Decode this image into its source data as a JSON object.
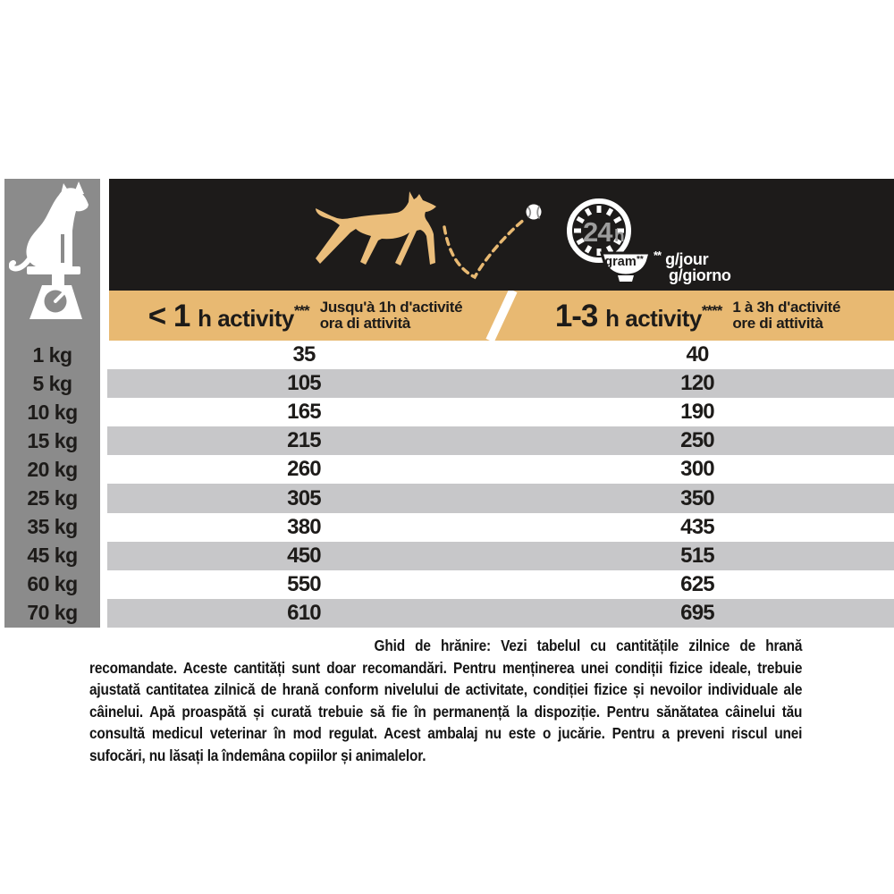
{
  "colors": {
    "band_black": "#1d1b1a",
    "gold": "#e8b972",
    "dog_gold": "#ebbe7b",
    "sidebar_gray": "#8b8b8b",
    "row_gray": "#c7c7c9",
    "clock_text_gray": "#9d9d9d",
    "text_black": "#1d1b19"
  },
  "icons": {
    "left_panel": "dog-on-scale-icon",
    "band": [
      "running-dog-icon",
      "ball-bounce-trajectory",
      "ball-icon",
      "24h-clock-icon",
      "food-bowl-icon"
    ]
  },
  "header_band": {
    "clock_value": "24",
    "clock_unit": "h",
    "bowl_label": "gram",
    "bowl_label_asterisks": "**",
    "units_asterisks": "**",
    "units_line1": "g/jour",
    "units_line2": "g/giorno"
  },
  "table": {
    "column_headers": [
      {
        "title_big": "< 1",
        "title_small": "h activity",
        "asterisks": "***",
        "subtitle_line1": "Jusqu'à 1h d'activité",
        "subtitle_line2": "ora di attività"
      },
      {
        "title_big": "1-3",
        "title_small": "h activity",
        "asterisks": "****",
        "subtitle_line1": "1 à 3h d'activité",
        "subtitle_line2": "ore di attività"
      }
    ],
    "rows": [
      {
        "weight": "1 kg",
        "lt1h": "35",
        "h13": "40"
      },
      {
        "weight": "5 kg",
        "lt1h": "105",
        "h13": "120"
      },
      {
        "weight": "10 kg",
        "lt1h": "165",
        "h13": "190"
      },
      {
        "weight": "15 kg",
        "lt1h": "215",
        "h13": "250"
      },
      {
        "weight": "20 kg",
        "lt1h": "260",
        "h13": "300"
      },
      {
        "weight": "25 kg",
        "lt1h": "305",
        "h13": "350"
      },
      {
        "weight": "35 kg",
        "lt1h": "380",
        "h13": "435"
      },
      {
        "weight": "45 kg",
        "lt1h": "450",
        "h13": "515"
      },
      {
        "weight": "60 kg",
        "lt1h": "550",
        "h13": "625"
      },
      {
        "weight": "70 kg",
        "lt1h": "610",
        "h13": "695"
      }
    ]
  },
  "footer": {
    "lead": "Ghid de hrănire:",
    "body": " Vezi tabelul cu cantitățile zilnice de hrană recomandate. Aceste cantități sunt doar recomandări. Pentru menținerea unei condiții fizice ideale, trebuie ajustată cantitatea zilnică de hrană conform nivelului de activitate, condiției fizice și nevoilor individuale ale câinelui. Apă proaspătă și curată trebuie să fie în permanență la dispoziție. Pentru sănătatea câinelui tău consultă medicul veterinar în mod regulat. Acest ambalaj nu este o jucărie. Pentru a preveni riscul unei sufocări, nu lăsați la îndemâna copiilor și animalelor."
  }
}
